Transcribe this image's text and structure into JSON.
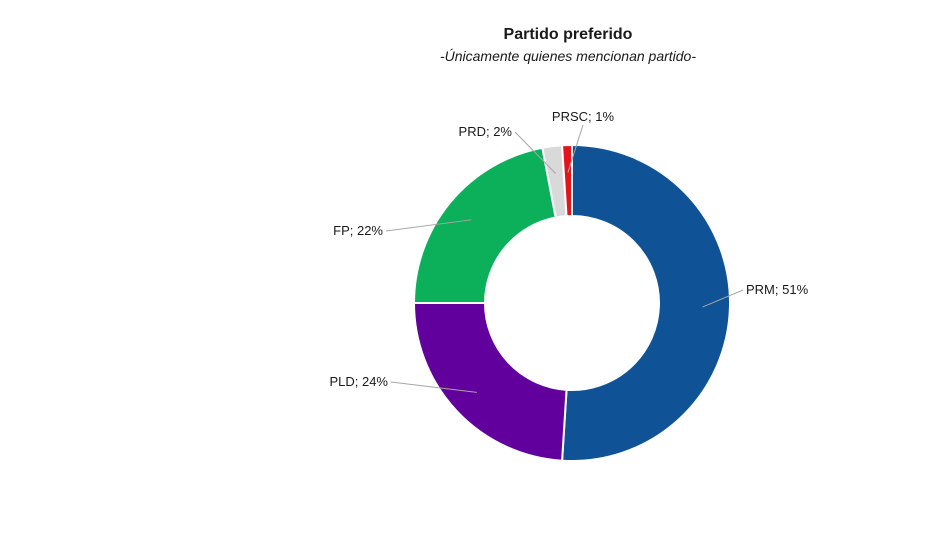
{
  "chart_data": {
    "type": "pie",
    "variant": "donut",
    "title": "Partido preferido",
    "subtitle": "-Únicamente quienes mencionan partido-",
    "start_angle_deg": 0,
    "direction": "clockwise",
    "slices": [
      {
        "label": "PRM",
        "value": 51,
        "display": "PRM; 51%",
        "color": "#0f5296"
      },
      {
        "label": "PLD",
        "value": 24,
        "display": "PLD; 24%",
        "color": "#62009e"
      },
      {
        "label": "FP",
        "value": 22,
        "display": "FP; 22%",
        "color": "#0caf5a"
      },
      {
        "label": "PRD",
        "value": 2,
        "display": "PRD; 2%",
        "color": "#d9d9d9"
      },
      {
        "label": "PRSC",
        "value": 1,
        "display": "PRSC; 1%",
        "color": "#e3141b"
      }
    ],
    "legend": "none"
  }
}
